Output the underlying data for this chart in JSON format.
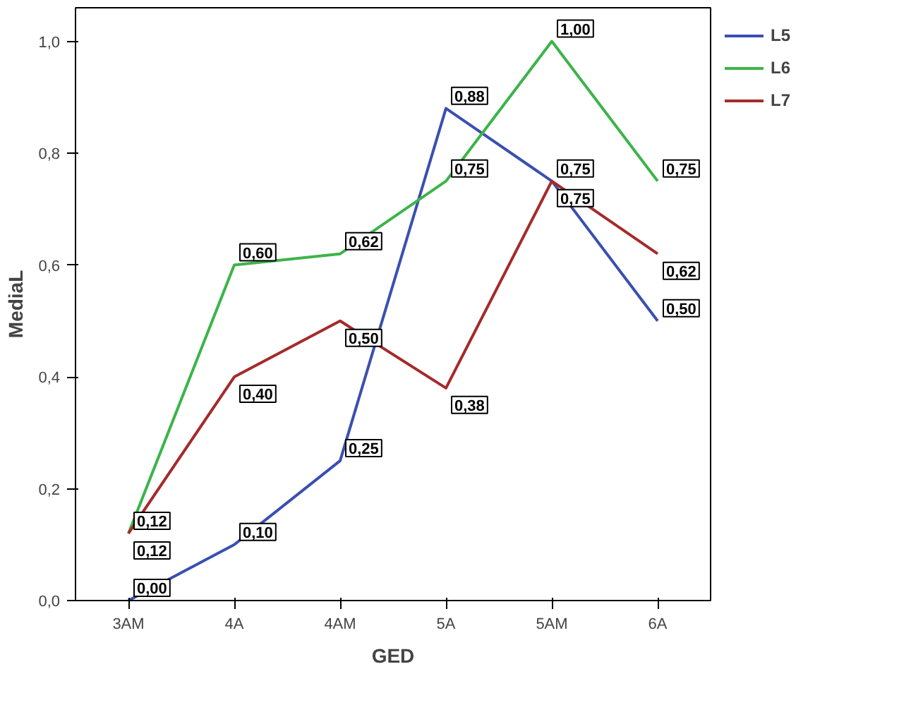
{
  "chart_data": {
    "type": "line",
    "xlabel": "GED",
    "ylabel": "MediaL",
    "categories": [
      "3AM",
      "4A",
      "4AM",
      "5A",
      "5AM",
      "6A"
    ],
    "ylim": [
      0,
      1.06
    ],
    "yticks": [
      {
        "value": 0,
        "label": "0,0"
      },
      {
        "value": 0.2,
        "label": "0,2"
      },
      {
        "value": 0.4,
        "label": "0,4"
      },
      {
        "value": 0.6,
        "label": "0,6"
      },
      {
        "value": 0.8,
        "label": "0,8"
      },
      {
        "value": 1.0,
        "label": "1,0"
      }
    ],
    "series": [
      {
        "name": "L5",
        "color": "#3a4fb0",
        "values": [
          0.0,
          0.1,
          0.25,
          0.88,
          0.75,
          0.5
        ],
        "value_labels": [
          "0,00",
          "0,10",
          "0,25",
          "0,88",
          "0,75",
          "0,50"
        ]
      },
      {
        "name": "L6",
        "color": "#3cb44a",
        "values": [
          0.12,
          0.6,
          0.62,
          0.75,
          1.0,
          0.75
        ],
        "value_labels": [
          "0,12",
          "0,60",
          "0,62",
          "0,75",
          "1,00",
          "0,75"
        ]
      },
      {
        "name": "L7",
        "color": "#a52a2a",
        "values": [
          0.12,
          0.4,
          0.5,
          0.38,
          0.75,
          0.62
        ],
        "value_labels": [
          "0,12",
          "0,40",
          "0,50",
          "0,38",
          "0,75",
          "0,62"
        ]
      }
    ],
    "legend": "right",
    "grid": false,
    "line_style": "solid"
  }
}
